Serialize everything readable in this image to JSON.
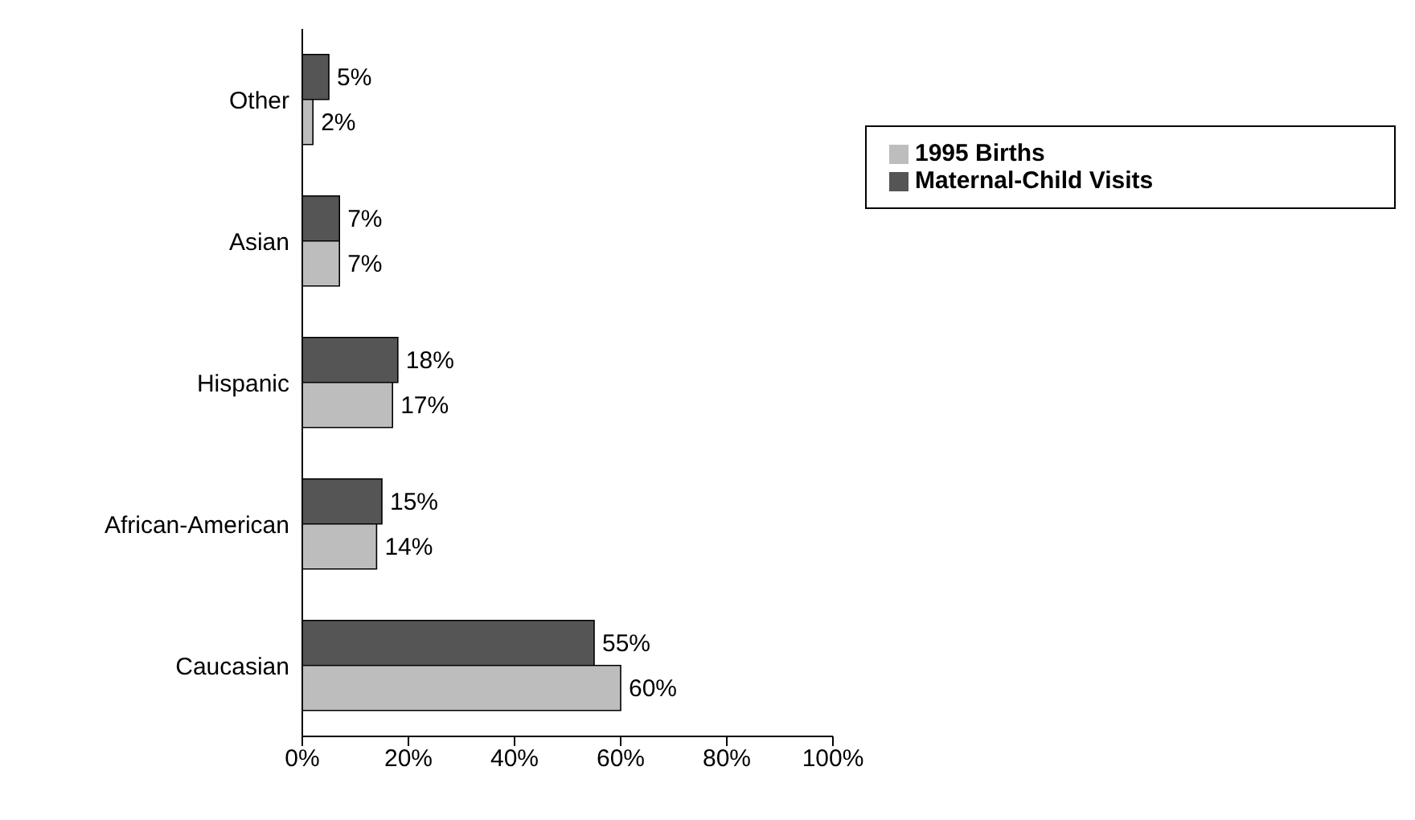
{
  "chart_data": {
    "type": "bar",
    "orientation": "horizontal",
    "categories": [
      "Other",
      "Asian",
      "Hispanic",
      "African-American",
      "Caucasian"
    ],
    "series": [
      {
        "name": "Maternal-Child Visits",
        "color": "#555555",
        "values": [
          5,
          7,
          18,
          15,
          55
        ],
        "value_labels": [
          "5%",
          "7%",
          "18%",
          "15%",
          "55%"
        ]
      },
      {
        "name": "1995 Births",
        "color": "#bdbdbd",
        "values": [
          2,
          7,
          17,
          14,
          60
        ],
        "value_labels": [
          "2%",
          "7%",
          "17%",
          "14%",
          "60%"
        ]
      }
    ],
    "xlim": [
      0,
      100
    ],
    "xticks": [
      {
        "value": 0,
        "label": "0%"
      },
      {
        "value": 20,
        "label": "20%"
      },
      {
        "value": 40,
        "label": "40%"
      },
      {
        "value": 60,
        "label": "60%"
      },
      {
        "value": 80,
        "label": "80%"
      },
      {
        "value": 100,
        "label": "100%"
      }
    ],
    "legend": "top right"
  }
}
